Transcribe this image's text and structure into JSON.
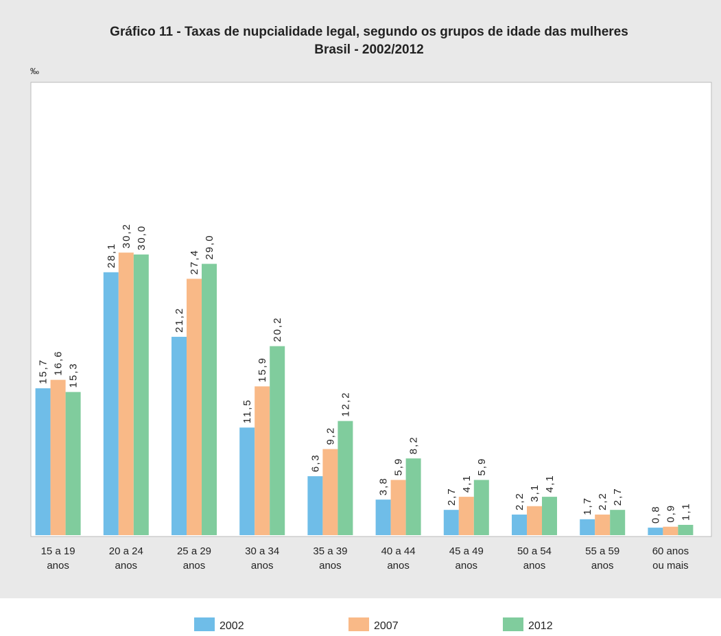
{
  "chart_data": {
    "type": "bar",
    "title": "Gráfico 11 - Taxas de nupcialidade legal, segundo os grupos de idade das mulheres",
    "subtitle": "Brasil - 2002/2012",
    "y_label": "‰",
    "categories": [
      [
        "15 a 19",
        "anos"
      ],
      [
        "20 a 24",
        "anos"
      ],
      [
        "25 a 29",
        "anos"
      ],
      [
        "30 a 34",
        "anos"
      ],
      [
        "35 a 39",
        "anos"
      ],
      [
        "40 a 44",
        "anos"
      ],
      [
        "45 a 49",
        "anos"
      ],
      [
        "50 a 54",
        "anos"
      ],
      [
        "55 a 59",
        "anos"
      ],
      [
        "60 anos",
        "ou mais"
      ]
    ],
    "series": [
      {
        "name": "2002",
        "color": "#6fbde8",
        "values": [
          15.7,
          28.1,
          21.2,
          11.5,
          6.3,
          3.8,
          2.7,
          2.2,
          1.7,
          0.8
        ],
        "value_labels": [
          "15,7",
          "28,1",
          "21,2",
          "11,5",
          "6,3",
          "3,8",
          "2,7",
          "2,2",
          "1,7",
          "0,8"
        ]
      },
      {
        "name": "2007",
        "color": "#f9b987",
        "values": [
          16.6,
          30.2,
          27.4,
          15.9,
          9.2,
          5.9,
          4.1,
          3.1,
          2.2,
          0.9
        ],
        "value_labels": [
          "16,6",
          "30,2",
          "27,4",
          "15,9",
          "9,2",
          "5,9",
          "4,1",
          "3,1",
          "2,2",
          "0,9"
        ]
      },
      {
        "name": "2012",
        "color": "#80cc9d",
        "values": [
          15.3,
          30.0,
          29.0,
          20.2,
          12.2,
          8.2,
          5.9,
          4.1,
          2.7,
          1.1
        ],
        "value_labels": [
          "15,3",
          "30,0",
          "29,0",
          "20,2",
          "12,2",
          "8,2",
          "5,9",
          "4,1",
          "2,7",
          "1,1"
        ]
      }
    ],
    "ylim": [
      0,
      48.4
    ]
  }
}
